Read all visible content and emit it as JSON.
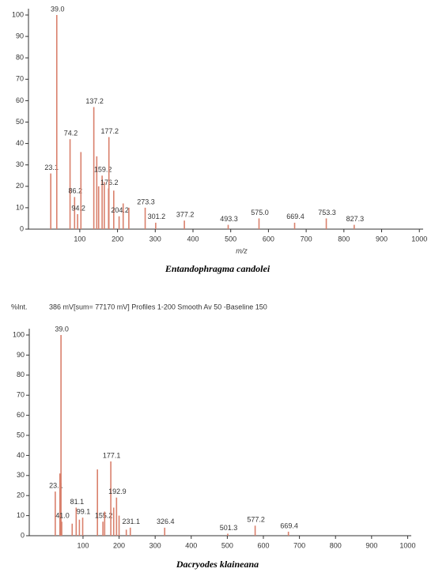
{
  "chart_data": [
    {
      "type": "bar",
      "x_label": "m/z",
      "title": "Entandophragma candolei",
      "color": "#d9806c",
      "x": [
        23.1,
        39.0,
        74.2,
        86.2,
        94.2,
        103,
        137.2,
        145,
        150,
        159.2,
        165,
        176.2,
        177.2,
        190,
        204.2,
        215,
        230,
        273.3,
        301.2,
        377.2,
        493.3,
        575.0,
        669.4,
        753.3,
        827.3
      ],
      "values": [
        26,
        100,
        42,
        15,
        7,
        36,
        57,
        34,
        20,
        25,
        22,
        19,
        43,
        18,
        6,
        12,
        10,
        10,
        3,
        4,
        2,
        5,
        3,
        5,
        2
      ],
      "peak_labels": [
        "23.1",
        "39.0",
        "74.2",
        "86.2",
        "94.2",
        null,
        "137.2",
        null,
        null,
        "159.2",
        null,
        "176.2",
        "177.2",
        null,
        "204.2",
        null,
        null,
        "273.3",
        "301.2",
        "377.2",
        "493.3",
        "575.0",
        "669.4",
        "753.3",
        "827.3"
      ],
      "xlim": [
        -36,
        1010
      ],
      "ylim": [
        0,
        100
      ],
      "xticks": [
        100,
        200,
        300,
        400,
        500,
        600,
        700,
        800,
        900,
        1000
      ],
      "yticks": [
        0,
        10,
        20,
        30,
        40,
        50,
        60,
        70,
        80,
        90,
        100
      ]
    },
    {
      "type": "bar",
      "header": "%Int.",
      "subtitle": "386 mV[sum= 77170 mV]  Profiles 1-200 Smooth Av 50 -Baseline 150",
      "title": "Dacryodes klaineana",
      "color": "#d9806c",
      "x": [
        23.1,
        36,
        39.0,
        41.0,
        70,
        81.1,
        90,
        99.1,
        140,
        155.2,
        160,
        177.1,
        185,
        192.9,
        200,
        220,
        231.1,
        326.4,
        501.3,
        577.2,
        669.4
      ],
      "values": [
        22,
        31,
        100,
        7,
        6,
        14,
        8,
        9,
        33,
        7,
        12,
        37,
        14,
        19,
        10,
        3,
        4,
        4,
        1,
        5,
        2
      ],
      "peak_labels": [
        "23.1",
        null,
        "39.0",
        "41.0",
        null,
        "81.1",
        null,
        "99.1",
        null,
        "155.2",
        null,
        "177.1",
        null,
        "192.9",
        null,
        null,
        "231.1",
        "326.4",
        "501.3",
        "577.2",
        "669.4"
      ],
      "xlim": [
        -49,
        1010
      ],
      "ylim": [
        0,
        100
      ],
      "xticks": [
        100,
        200,
        300,
        400,
        500,
        600,
        700,
        800,
        900,
        1000
      ],
      "yticks": [
        0,
        10,
        20,
        30,
        40,
        50,
        60,
        70,
        80,
        90,
        100
      ]
    }
  ]
}
